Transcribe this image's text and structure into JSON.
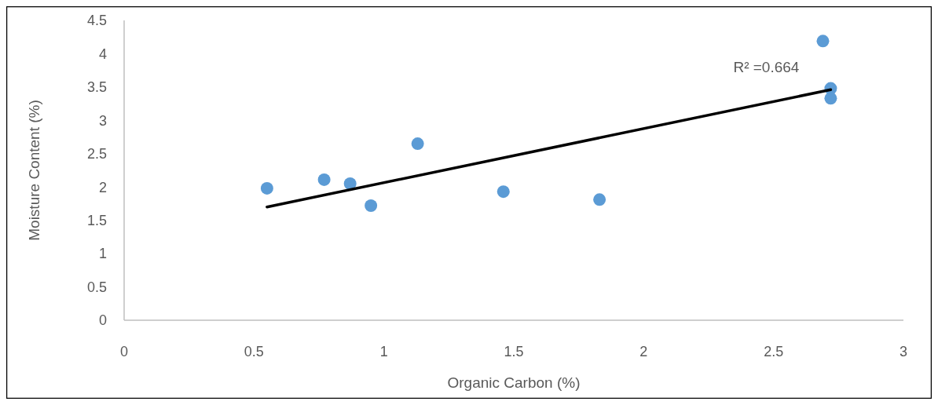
{
  "chart_data": {
    "type": "scatter",
    "xlabel": "Organic Carbon (%)",
    "ylabel": "Moisture Content (%)",
    "xlim": [
      0,
      3
    ],
    "xticks": [
      0,
      0.5,
      1,
      1.5,
      2,
      2.5,
      3
    ],
    "ylim": [
      0,
      4.5
    ],
    "yticks": [
      0,
      0.5,
      1,
      1.5,
      2,
      2.5,
      3,
      3.5,
      4,
      4.5
    ],
    "grid": false,
    "marker": "circle",
    "series": [
      {
        "color": "#5b9bd5",
        "x": [
          0.55,
          0.77,
          0.87,
          0.95,
          1.13,
          1.46,
          1.83,
          2.69,
          2.72,
          2.72
        ],
        "values": [
          1.98,
          2.11,
          2.05,
          1.72,
          2.65,
          1.93,
          1.81,
          4.19,
          3.48,
          3.33
        ]
      },
      {
        "type": "line",
        "color": "#000000",
        "line_style": "solid",
        "marker": "none",
        "x": [
          0.55,
          2.72
        ],
        "values": [
          1.7,
          3.46
        ]
      }
    ],
    "annotations": [
      "R² =0.664"
    ]
  }
}
